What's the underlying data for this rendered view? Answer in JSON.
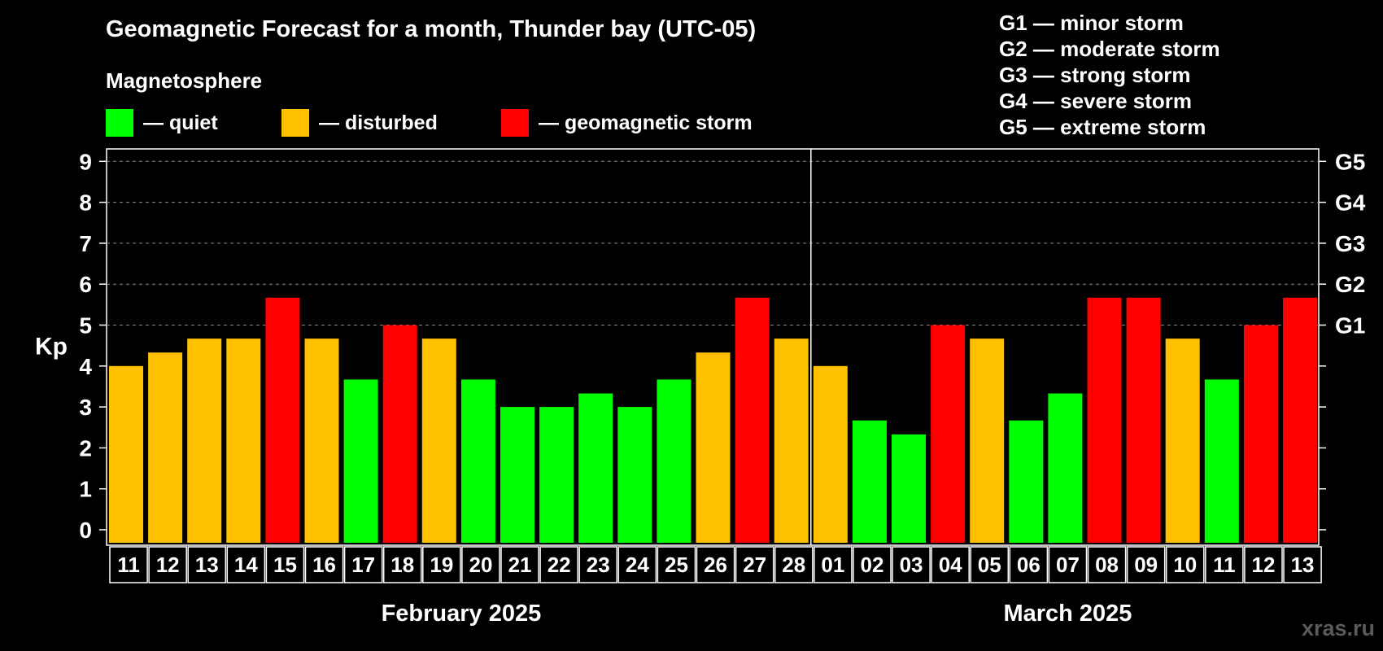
{
  "title": "Geomagnetic Forecast for a month, Thunder bay (UTC-05)",
  "subtitle": "Magnetosphere",
  "legend": [
    {
      "label": "— quiet",
      "color": "#00ff00"
    },
    {
      "label": "— disturbed",
      "color": "#ffc000"
    },
    {
      "label": "— geomagnetic storm",
      "color": "#ff0000"
    }
  ],
  "storm_scale": [
    "G1 — minor storm",
    "G2 — moderate storm",
    "G3 — strong storm",
    "G4 — severe storm",
    "G5 — extreme storm"
  ],
  "watermark": "xras.ru",
  "colors": {
    "quiet": "#00ff00",
    "disturbed": "#ffc000",
    "storm": "#ff0000"
  },
  "chart_data": {
    "type": "bar",
    "title": "Geomagnetic Forecast for a month, Thunder bay (UTC-05)",
    "ylabel": "Kp",
    "ylim": [
      0,
      9
    ],
    "y_ticks": [
      "0",
      "1",
      "2",
      "3",
      "4",
      "5",
      "6",
      "7",
      "8",
      "9"
    ],
    "right_ticks": [
      {
        "kp": 5,
        "label": "G1"
      },
      {
        "kp": 6,
        "label": "G2"
      },
      {
        "kp": 7,
        "label": "G3"
      },
      {
        "kp": 8,
        "label": "G4"
      },
      {
        "kp": 9,
        "label": "G5"
      }
    ],
    "grid": "dashed horizontal",
    "months": [
      {
        "label": "February 2025",
        "days": 18
      },
      {
        "label": "March 2025",
        "days": 13
      }
    ],
    "categories": [
      "11",
      "12",
      "13",
      "14",
      "15",
      "16",
      "17",
      "18",
      "19",
      "20",
      "21",
      "22",
      "23",
      "24",
      "25",
      "26",
      "27",
      "28",
      "01",
      "02",
      "03",
      "04",
      "05",
      "06",
      "07",
      "08",
      "09",
      "10",
      "11",
      "12",
      "13"
    ],
    "values": [
      4.0,
      4.33,
      4.67,
      4.67,
      5.67,
      4.67,
      3.67,
      5.0,
      4.67,
      3.67,
      3.0,
      3.0,
      3.33,
      3.0,
      3.67,
      4.33,
      5.67,
      4.67,
      4.0,
      2.67,
      2.33,
      5.0,
      4.67,
      2.67,
      3.33,
      5.67,
      5.67,
      4.67,
      3.67,
      5.0,
      5.67
    ],
    "status": [
      "disturbed",
      "disturbed",
      "disturbed",
      "disturbed",
      "storm",
      "disturbed",
      "quiet",
      "storm",
      "disturbed",
      "quiet",
      "quiet",
      "quiet",
      "quiet",
      "quiet",
      "quiet",
      "disturbed",
      "storm",
      "disturbed",
      "disturbed",
      "quiet",
      "quiet",
      "storm",
      "disturbed",
      "quiet",
      "quiet",
      "storm",
      "storm",
      "disturbed",
      "quiet",
      "storm",
      "storm"
    ]
  }
}
